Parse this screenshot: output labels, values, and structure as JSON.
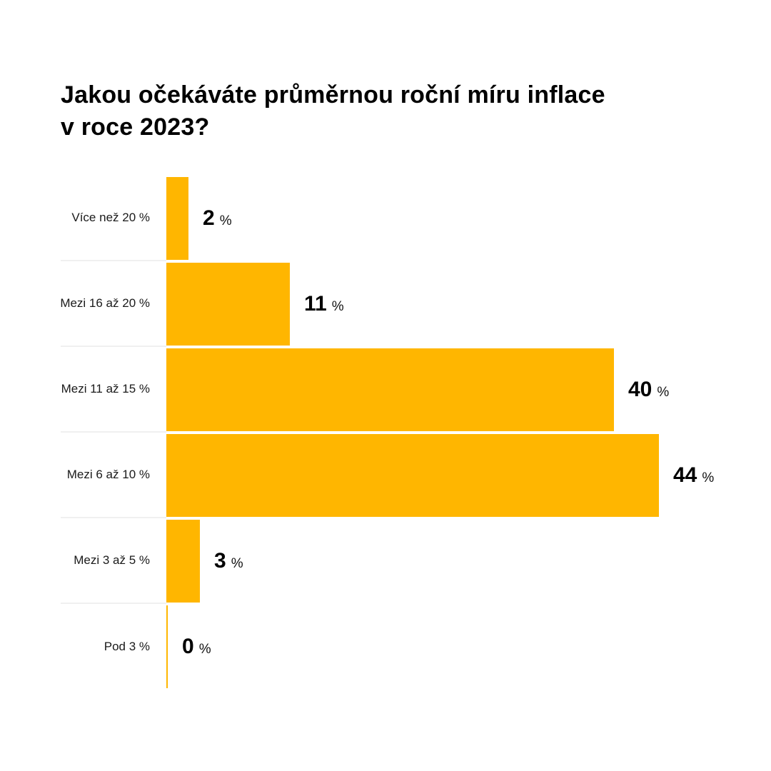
{
  "title": {
    "text": "Jakou očekáváte průměrnou roční míru inflace\nv roce 2023?"
  },
  "chart_data": {
    "type": "bar",
    "orientation": "horizontal",
    "title": "Jakou očekáváte průměrnou roční míru inflace v roce 2023?",
    "categories": [
      "Více než 20 %",
      "Mezi 16 až 20 %",
      "Mezi 11 až 15 %",
      "Mezi 6 až 10 %",
      "Mezi 3 až 5 %",
      "Pod 3 %"
    ],
    "values": [
      2,
      11,
      40,
      44,
      3,
      0
    ],
    "value_suffix": "%",
    "xlim": [
      0,
      44
    ],
    "grid": false,
    "legend": false,
    "bar_color": "#FFB600",
    "separator_color": "#F0F0F0",
    "zero_axis_color": "#FFB600",
    "background_color": "#FFFFFF",
    "text_color": "#000000"
  }
}
